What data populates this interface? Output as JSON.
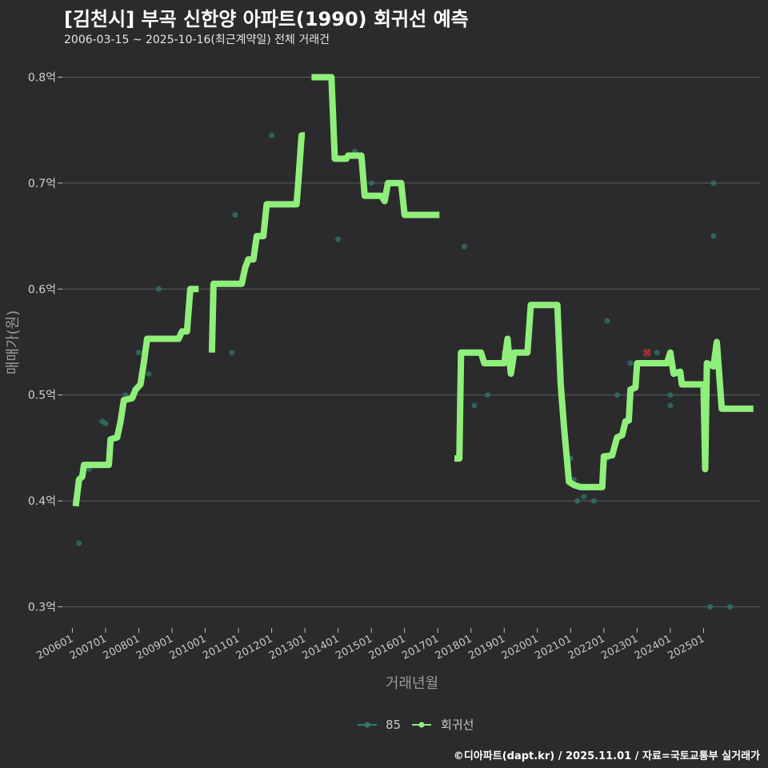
{
  "title": "[김천시] 부곡 신한양 아파트(1990) 회귀선 예측",
  "subtitle": "2006-03-15 ~ 2025-10-16(최근계약일) 전체 거래건",
  "footer": "©디아파트(dapt.kr) / 2025.11.01 / 자료=국토교통부 실거래가",
  "colors": {
    "background": "#2b2b2d",
    "grid": "#5c5c5e",
    "line": "#8fef7a",
    "points": "#2f7a6a",
    "marker": "#b03030"
  },
  "chart_data": {
    "type": "line",
    "title": "[김천시] 부곡 신한양 아파트(1990) 회귀선 예측",
    "xlabel": "거래년월",
    "ylabel": "매매가(원)",
    "ylim": [
      0.28,
      0.82
    ],
    "xlim": [
      2005.7,
      2026.7
    ],
    "yticks": [
      0.3,
      0.4,
      0.5,
      0.6,
      0.7,
      0.8
    ],
    "ytick_labels": [
      "0.3억",
      "0.4억",
      "0.5억",
      "0.6억",
      "0.7억",
      "0.8억"
    ],
    "xticks": [
      2006,
      2007,
      2008,
      2009,
      2010,
      2011,
      2012,
      2013,
      2014,
      2015,
      2016,
      2017,
      2018,
      2019,
      2020,
      2021,
      2022,
      2023,
      2024,
      2025
    ],
    "xtick_labels": [
      "200601",
      "200701",
      "200801",
      "200901",
      "201001",
      "201101",
      "201201",
      "201301",
      "201401",
      "201501",
      "201601",
      "201701",
      "201801",
      "201901",
      "202001",
      "202101",
      "202201",
      "202301",
      "202401",
      "202501"
    ],
    "legend": [
      "85",
      "회귀선"
    ],
    "legend_position": "bottom",
    "series": [
      {
        "name": "85",
        "kind": "scatter",
        "points": [
          [
            2006.2,
            0.36
          ],
          [
            2006.5,
            0.43
          ],
          [
            2006.9,
            0.475
          ],
          [
            2007.0,
            0.473
          ],
          [
            2007.6,
            0.5
          ],
          [
            2008.0,
            0.54
          ],
          [
            2008.3,
            0.52
          ],
          [
            2008.6,
            0.6
          ],
          [
            2010.8,
            0.54
          ],
          [
            2010.9,
            0.67
          ],
          [
            2011.7,
            0.65
          ],
          [
            2012.0,
            0.745
          ],
          [
            2013.3,
            0.8
          ],
          [
            2014.0,
            0.647
          ],
          [
            2014.5,
            0.73
          ],
          [
            2015.0,
            0.7
          ],
          [
            2017.6,
            0.44
          ],
          [
            2017.8,
            0.64
          ],
          [
            2018.1,
            0.49
          ],
          [
            2018.5,
            0.5
          ],
          [
            2019.0,
            0.54
          ],
          [
            2021.0,
            0.44
          ],
          [
            2021.1,
            0.42
          ],
          [
            2021.2,
            0.4
          ],
          [
            2021.4,
            0.404
          ],
          [
            2021.7,
            0.4
          ],
          [
            2022.1,
            0.57
          ],
          [
            2022.1,
            0.44
          ],
          [
            2022.4,
            0.5
          ],
          [
            2022.8,
            0.53
          ],
          [
            2023.0,
            0.53
          ],
          [
            2023.6,
            0.54
          ],
          [
            2024.0,
            0.49
          ],
          [
            2024.0,
            0.5
          ],
          [
            2025.2,
            0.3
          ],
          [
            2025.3,
            0.7
          ],
          [
            2025.3,
            0.65
          ],
          [
            2025.8,
            0.3
          ]
        ]
      },
      {
        "name": "회귀선",
        "kind": "line",
        "segments": [
          [
            [
              2006.1,
              0.395
            ],
            [
              2006.2,
              0.42
            ],
            [
              2006.3,
              0.423
            ],
            [
              2006.35,
              0.434
            ],
            [
              2007.1,
              0.434
            ],
            [
              2007.15,
              0.458
            ],
            [
              2007.35,
              0.46
            ],
            [
              2007.45,
              0.475
            ],
            [
              2007.55,
              0.495
            ],
            [
              2007.8,
              0.497
            ],
            [
              2007.9,
              0.505
            ],
            [
              2008.05,
              0.51
            ],
            [
              2008.15,
              0.53
            ],
            [
              2008.25,
              0.553
            ],
            [
              2009.2,
              0.553
            ],
            [
              2009.3,
              0.56
            ],
            [
              2009.45,
              0.56
            ],
            [
              2009.55,
              0.6
            ],
            [
              2009.8,
              0.6
            ]
          ],
          [
            [
              2010.2,
              0.54
            ],
            [
              2010.25,
              0.605
            ],
            [
              2011.1,
              0.605
            ],
            [
              2011.2,
              0.62
            ],
            [
              2011.3,
              0.628
            ],
            [
              2011.45,
              0.628
            ],
            [
              2011.55,
              0.65
            ],
            [
              2011.75,
              0.65
            ],
            [
              2011.85,
              0.68
            ],
            [
              2012.75,
              0.68
            ],
            [
              2012.8,
              0.7
            ],
            [
              2012.9,
              0.745
            ],
            [
              2013.0,
              0.745
            ]
          ],
          [
            [
              2013.2,
              0.8
            ],
            [
              2013.8,
              0.8
            ],
            [
              2013.9,
              0.723
            ],
            [
              2014.25,
              0.723
            ],
            [
              2014.3,
              0.726
            ],
            [
              2014.7,
              0.726
            ],
            [
              2014.8,
              0.688
            ],
            [
              2015.3,
              0.688
            ],
            [
              2015.4,
              0.683
            ],
            [
              2015.5,
              0.7
            ],
            [
              2015.9,
              0.7
            ],
            [
              2016.0,
              0.67
            ],
            [
              2017.05,
              0.67
            ]
          ],
          [
            [
              2017.5,
              0.44
            ],
            [
              2017.65,
              0.44
            ],
            [
              2017.7,
              0.54
            ],
            [
              2018.3,
              0.54
            ],
            [
              2018.4,
              0.53
            ],
            [
              2019.0,
              0.53
            ],
            [
              2019.1,
              0.553
            ],
            [
              2019.15,
              0.535
            ],
            [
              2019.2,
              0.52
            ],
            [
              2019.3,
              0.54
            ],
            [
              2019.7,
              0.54
            ],
            [
              2019.8,
              0.585
            ],
            [
              2020.6,
              0.585
            ],
            [
              2020.7,
              0.51
            ],
            [
              2020.8,
              0.47
            ],
            [
              2020.95,
              0.418
            ],
            [
              2021.1,
              0.415
            ],
            [
              2021.3,
              0.413
            ],
            [
              2021.95,
              0.413
            ],
            [
              2022.0,
              0.442
            ],
            [
              2022.25,
              0.443
            ],
            [
              2022.4,
              0.46
            ],
            [
              2022.55,
              0.462
            ],
            [
              2022.65,
              0.475
            ],
            [
              2022.75,
              0.476
            ],
            [
              2022.8,
              0.505
            ],
            [
              2022.95,
              0.507
            ],
            [
              2023.0,
              0.53
            ],
            [
              2023.9,
              0.53
            ],
            [
              2024.0,
              0.54
            ],
            [
              2024.1,
              0.52
            ],
            [
              2024.3,
              0.522
            ],
            [
              2024.35,
              0.51
            ],
            [
              2025.0,
              0.51
            ],
            [
              2025.05,
              0.43
            ],
            [
              2025.1,
              0.53
            ],
            [
              2025.3,
              0.527
            ],
            [
              2025.4,
              0.55
            ],
            [
              2025.55,
              0.487
            ],
            [
              2026.5,
              0.487
            ]
          ]
        ]
      }
    ],
    "annotations": [
      {
        "kind": "x-marker",
        "x": 2023.3,
        "y": 0.54
      }
    ]
  }
}
